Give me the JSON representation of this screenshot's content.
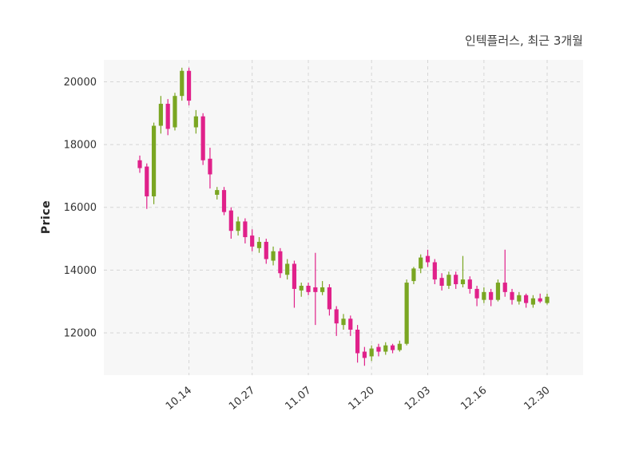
{
  "chart_data": {
    "type": "candlestick",
    "title": "인텍플러스, 최근 3개월",
    "ylabel": "Price",
    "ylim": [
      10650,
      20700
    ],
    "yticks": [
      12000,
      14000,
      16000,
      18000,
      20000
    ],
    "xticks": [
      {
        "index": 7,
        "label": "10.14"
      },
      {
        "index": 16,
        "label": "10.27"
      },
      {
        "index": 24,
        "label": "11.07"
      },
      {
        "index": 33,
        "label": "11.20"
      },
      {
        "index": 41,
        "label": "12.03"
      },
      {
        "index": 49,
        "label": "12.16"
      },
      {
        "index": 58,
        "label": "12.30"
      }
    ],
    "grid": {
      "style": "dashed",
      "color": "#d6d6d6"
    },
    "legend": "none",
    "colors": {
      "up": "#7aa622",
      "down": "#e0218a",
      "plot_bg": "#f7f7f7",
      "fig_bg": "#ffffff",
      "tick_label": "#333333",
      "title": "#3d3d3d"
    },
    "candles_format": [
      "open",
      "high",
      "low",
      "close"
    ],
    "candles": [
      [
        17500,
        17650,
        17100,
        17250
      ],
      [
        17300,
        17400,
        15950,
        16350
      ],
      [
        16350,
        18700,
        16100,
        18600
      ],
      [
        18600,
        19550,
        18350,
        19300
      ],
      [
        19300,
        19450,
        18300,
        18500
      ],
      [
        18550,
        19650,
        18450,
        19550
      ],
      [
        19550,
        20450,
        19400,
        20350
      ],
      [
        20350,
        20450,
        19250,
        19400
      ],
      [
        18550,
        19100,
        18350,
        18900
      ],
      [
        18900,
        19000,
        17350,
        17500
      ],
      [
        17550,
        17900,
        16600,
        17050
      ],
      [
        16400,
        16650,
        16250,
        16550
      ],
      [
        16550,
        16650,
        15750,
        15850
      ],
      [
        15900,
        16000,
        15000,
        15250
      ],
      [
        15250,
        15700,
        15100,
        15550
      ],
      [
        15550,
        15650,
        14850,
        15050
      ],
      [
        15100,
        15300,
        14600,
        14750
      ],
      [
        14700,
        15050,
        14550,
        14900
      ],
      [
        14900,
        15000,
        14200,
        14350
      ],
      [
        14300,
        14750,
        14150,
        14600
      ],
      [
        14600,
        14700,
        13750,
        13900
      ],
      [
        13850,
        14350,
        13700,
        14200
      ],
      [
        14200,
        14300,
        12800,
        13400
      ],
      [
        13350,
        13600,
        13150,
        13500
      ],
      [
        13500,
        13600,
        13200,
        13300
      ],
      [
        13450,
        14550,
        12250,
        13300
      ],
      [
        13300,
        13650,
        13200,
        13450
      ],
      [
        13450,
        13550,
        12550,
        12750
      ],
      [
        12750,
        12850,
        11900,
        12300
      ],
      [
        12250,
        12600,
        12100,
        12450
      ],
      [
        12450,
        12550,
        11900,
        12100
      ],
      [
        12100,
        12250,
        11050,
        11350
      ],
      [
        11400,
        11550,
        10950,
        11200
      ],
      [
        11250,
        11600,
        11100,
        11500
      ],
      [
        11550,
        11650,
        11250,
        11400
      ],
      [
        11400,
        11700,
        11300,
        11600
      ],
      [
        11600,
        11650,
        11350,
        11450
      ],
      [
        11450,
        11750,
        11400,
        11650
      ],
      [
        11650,
        13700,
        11600,
        13600
      ],
      [
        13650,
        14100,
        13550,
        14050
      ],
      [
        14050,
        14500,
        13900,
        14400
      ],
      [
        14450,
        14650,
        14100,
        14250
      ],
      [
        14250,
        14350,
        13550,
        13700
      ],
      [
        13750,
        13900,
        13350,
        13500
      ],
      [
        13500,
        13950,
        13400,
        13850
      ],
      [
        13850,
        13950,
        13400,
        13550
      ],
      [
        13550,
        14450,
        13450,
        13700
      ],
      [
        13700,
        13800,
        13250,
        13400
      ],
      [
        13400,
        13500,
        12850,
        13100
      ],
      [
        13050,
        13450,
        12950,
        13300
      ],
      [
        13300,
        13400,
        12850,
        13050
      ],
      [
        13050,
        13700,
        13000,
        13600
      ],
      [
        13600,
        14650,
        13150,
        13300
      ],
      [
        13300,
        13400,
        12900,
        13050
      ],
      [
        13000,
        13300,
        12900,
        13200
      ],
      [
        13200,
        13250,
        12800,
        12950
      ],
      [
        12900,
        13200,
        12800,
        13100
      ],
      [
        13100,
        13250,
        12950,
        13000
      ],
      [
        12950,
        13250,
        12900,
        13150
      ]
    ]
  }
}
